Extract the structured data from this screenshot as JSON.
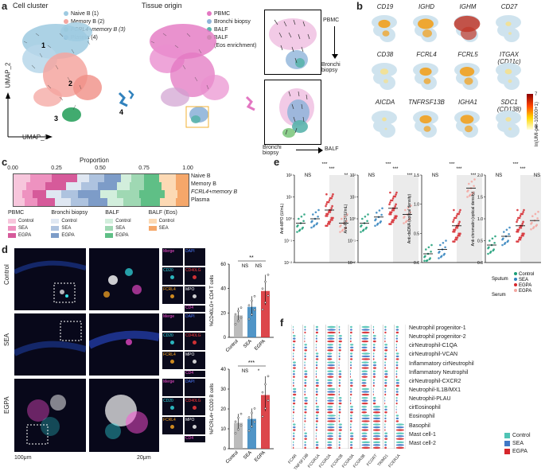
{
  "panels": {
    "a": "a",
    "b": "b",
    "c": "c",
    "d": "d",
    "e": "e",
    "f": "f"
  },
  "a": {
    "title_left": "Cell cluster",
    "title_right": "Tissue origin",
    "xlabel": "UMAP_1",
    "ylabel": "UMAP_2",
    "clusters": [
      {
        "label": "Naive B (1)",
        "color": "#9ecae1"
      },
      {
        "label": "Memory B (2)",
        "color": "#f4a6a0"
      },
      {
        "label": "FCRL4+memory B (3)",
        "color": "#2ca25f"
      },
      {
        "label": "Plasma (4)",
        "color": "#3182bd"
      }
    ],
    "cluster_numbers": [
      "1",
      "2",
      "3",
      "4",
      "4"
    ],
    "origins": [
      {
        "label": "PBMC",
        "color": "#e377c2"
      },
      {
        "label": "Bronchi biopsy",
        "color": "#8fb4d9"
      },
      {
        "label": "BALF",
        "color": "#5ab4ac"
      },
      {
        "label": "BALF",
        "color": "#7fc97f"
      },
      {
        "label": "(Eos enrichment)",
        "color": ""
      }
    ],
    "arrow_labels": {
      "pbmc": "PBMC",
      "biopsy": "Bronchi biopsy",
      "biopsy2": "Bronchi biopsy",
      "balf": "BALF"
    }
  },
  "b": {
    "genes": [
      "CD19",
      "IGHD",
      "IGHM",
      "CD27",
      "CD38",
      "FCRL4",
      "FCRL5",
      "ITGAX (CD11c)",
      "AICDA",
      "TNFRSF13B",
      "IGHA1",
      "SDC1 (CD138)"
    ],
    "colorbar_label": "ln(UMI-per-10000+1)",
    "colorbar_max": "7",
    "colorbar_min": "0",
    "intensity": [
      0.35,
      0.5,
      0.9,
      0.1,
      0.2,
      0.35,
      0.45,
      0.15,
      0.05,
      0.35,
      0.4,
      0.1
    ]
  },
  "c": {
    "title": "Proportion",
    "ticks": [
      "0.00",
      "0.25",
      "0.50",
      "0.75",
      "1.00"
    ],
    "rows": [
      "Naive B",
      "Memory B",
      "FCRL4+memory B",
      "Plasma"
    ],
    "legend_groups": [
      {
        "name": "PBMC",
        "items": [
          {
            "label": "Control",
            "color": "#f7c6dc"
          },
          {
            "label": "SEA",
            "color": "#ee92c0"
          },
          {
            "label": "EGPA",
            "color": "#d65a9a"
          }
        ]
      },
      {
        "name": "Bronchi biopsy",
        "items": [
          {
            "label": "Control",
            "color": "#dfe7f2"
          },
          {
            "label": "SEA",
            "color": "#aec3df"
          },
          {
            "label": "EGPA",
            "color": "#7d9cc8"
          }
        ]
      },
      {
        "name": "BALF",
        "items": [
          {
            "label": "Control",
            "color": "#d2eedc"
          },
          {
            "label": "SEA",
            "color": "#9fd8b3"
          },
          {
            "label": "EGPA",
            "color": "#5fbf86"
          }
        ]
      },
      {
        "name": "BALF (Eos)",
        "items": [
          {
            "label": "Control",
            "color": "#fcd9b4"
          },
          {
            "label": "SEA",
            "color": "#f5a76a"
          }
        ]
      }
    ]
  },
  "d": {
    "rows": [
      "Control",
      "SEA",
      "EGPA"
    ],
    "channels_top": [
      {
        "label": "CD20",
        "color": "#33e0e6"
      },
      {
        "label": "CD40LG",
        "color": "#ff3b3b"
      },
      {
        "label": "FCRL4",
        "color": "#ffaa22"
      },
      {
        "label": "MPO",
        "color": "#ffffff"
      }
    ],
    "channels_bottom": [
      {
        "label": "Merge",
        "color": "#ff4fd8"
      },
      {
        "label": "DAPI",
        "color": "#4d7bff"
      },
      {
        "label": "CD4",
        "color": "#ff4fd8"
      }
    ],
    "scale_left": "100μm",
    "scale_right": "20μm",
    "chart1_ylabel": "%CD40LG+ CD4 T cells",
    "chart2_ylabel": "%FCRL4+ CD20 B cells",
    "chart1_sig": [
      "**",
      "NS",
      "NS"
    ],
    "chart2_sig": [
      "***",
      "NS",
      "*"
    ],
    "chart1_ticks": [
      "0",
      "20",
      "40",
      "60"
    ],
    "chart2_ticks": [
      "0",
      "10",
      "20",
      "30",
      "40"
    ],
    "groups": [
      "Control",
      "SEA",
      "EGPA"
    ]
  },
  "e": {
    "ylabels": [
      "Anti-MPO (U/mL)",
      "Anti-PR3 (U/mL)",
      "Anti-dsDNA (optical density)",
      "Anti-chromatin (optical density)"
    ],
    "ticks_log": [
      "10⁻²",
      "10⁻¹",
      "10⁰",
      "10¹",
      "10²"
    ],
    "ticks_lin3": [
      "0.0",
      "0.5",
      "1.0",
      "1.5"
    ],
    "ticks_lin4": [
      "0.0",
      "0.5",
      "1.0",
      "1.5",
      "2.0"
    ],
    "sig_rows": [
      [
        "***",
        "***",
        "NS",
        "**"
      ],
      [
        "***",
        "***",
        "NS",
        "***"
      ],
      [
        "***",
        "***",
        "NS",
        "***"
      ],
      [
        "***",
        "***",
        "NS",
        "NS"
      ]
    ],
    "legend_sputum": "Sputum",
    "legend_serum": "Serum",
    "legend_items": [
      {
        "label": "Control",
        "color": "#1b9e77"
      },
      {
        "label": "SEA",
        "color": "#3182bd"
      },
      {
        "label": "EGPA",
        "color": "#d6262b"
      },
      {
        "label": "EGPA",
        "color": "#f4a6a0"
      }
    ]
  },
  "f": {
    "cell_types": [
      "Neutrophil progenitor-1",
      "Neutrophil progenitor-2",
      "cirNeutrophil-C1QA",
      "cirNeutrophil-VCAN",
      "Inflammatory cirNeutrophil",
      "Inflammatory Neutrophil",
      "cirNeutrophil-CXCR2",
      "Neutrophil-IL1B/MX1",
      "Neutrophil-PLAU",
      "cirEosinophil",
      "Eosinophil",
      "Basophil",
      "Mast cell-1",
      "Mast cell-2"
    ],
    "genes": [
      "FCAR",
      "TNFSF13B",
      "FCGR1A",
      "FCGR2A",
      "FCGR2B",
      "FCGR3A",
      "FCGR3B",
      "FCGRT",
      "TRIM21",
      "FCER1A"
    ],
    "legend": [
      {
        "label": "Control",
        "color": "#4fc3b4"
      },
      {
        "label": "SEA",
        "color": "#3f78c7"
      },
      {
        "label": "EGPA",
        "color": "#d6262b"
      }
    ]
  }
}
